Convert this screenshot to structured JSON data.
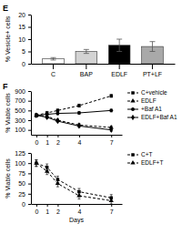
{
  "chart_data": [
    {
      "type": "bar",
      "title": "E",
      "categories": [
        "C",
        "BAP",
        "EDLF",
        "PT+LF"
      ],
      "values": [
        2.0,
        5.0,
        7.5,
        7.0
      ],
      "errors": [
        0.5,
        0.8,
        2.5,
        2.0
      ],
      "colors": [
        "white",
        "lightgray",
        "black",
        "darkgray"
      ],
      "ylabel": "% Vesicle+ cells",
      "ylim": [
        0,
        20
      ],
      "yticks": [
        0,
        5,
        10,
        15,
        20
      ]
    },
    {
      "type": "line",
      "title": "F",
      "ylabel": "% Viable cells",
      "x": [
        0,
        1,
        2,
        4,
        7
      ],
      "xlim": [
        -0.5,
        8
      ],
      "xticks": [
        0,
        1,
        2,
        4,
        7
      ],
      "ylim": [
        0,
        900
      ],
      "yticks": [
        100,
        300,
        500,
        700,
        900
      ],
      "series": [
        {
          "name": "C+vehicle",
          "color": "black",
          "marker": "square",
          "line_style": "dashed",
          "values": [
            400,
            450,
            500,
            600,
            800
          ],
          "errors": [
            30,
            30,
            30,
            30,
            30
          ]
        },
        {
          "name": "EDLF",
          "color": "black",
          "marker": "triangle",
          "line_style": "dashed",
          "values": [
            400,
            380,
            300,
            200,
            150
          ],
          "errors": [
            30,
            30,
            30,
            30,
            30
          ]
        },
        {
          "name": "+Baf A1",
          "color": "black",
          "marker": "circle",
          "line_style": "solid",
          "values": [
            400,
            420,
            440,
            450,
            500
          ],
          "errors": [
            30,
            30,
            30,
            30,
            30
          ]
        },
        {
          "name": "EDLF+Baf A1",
          "color": "black",
          "marker": "diamond",
          "line_style": "solid",
          "values": [
            400,
            360,
            280,
            180,
            100
          ],
          "errors": [
            30,
            30,
            30,
            30,
            30
          ]
        }
      ]
    },
    {
      "type": "line",
      "xlabel": "Days",
      "ylabel": "% Viable cells",
      "x": [
        0,
        1,
        2,
        4,
        7
      ],
      "xlim": [
        -0.5,
        8
      ],
      "xticks": [
        0,
        1,
        2,
        4,
        7
      ],
      "ylim": [
        0,
        125
      ],
      "yticks": [
        0,
        25,
        50,
        75,
        100,
        125
      ],
      "series": [
        {
          "name": "C+T",
          "color": "black",
          "marker": "square",
          "line_style": "dashed",
          "values": [
            100,
            90,
            60,
            30,
            15
          ],
          "errors": [
            8,
            8,
            8,
            8,
            8
          ]
        },
        {
          "name": "EDLF+T",
          "color": "black",
          "marker": "triangle",
          "line_style": "dashed",
          "values": [
            100,
            80,
            50,
            20,
            8
          ],
          "errors": [
            8,
            8,
            8,
            8,
            8
          ]
        }
      ]
    }
  ]
}
